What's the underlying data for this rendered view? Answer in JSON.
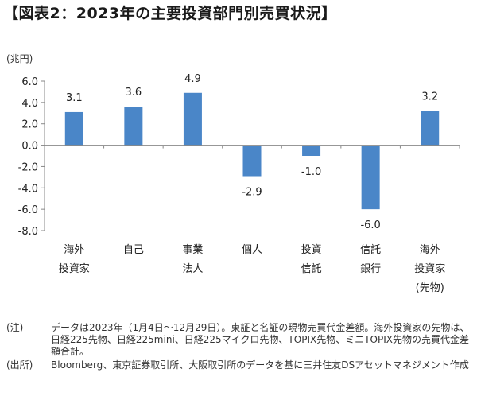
{
  "title": "【図表2：2023年の主要投資部門別売買状況】",
  "chart_data": {
    "type": "bar",
    "unit_label": "(兆円)",
    "categories": [
      [
        "海外",
        "投資家"
      ],
      [
        "自己"
      ],
      [
        "事業",
        "法人"
      ],
      [
        "個人"
      ],
      [
        "投資",
        "信託"
      ],
      [
        "信託",
        "銀行"
      ],
      [
        "海外",
        "投資家",
        "(先物)"
      ]
    ],
    "values": [
      3.1,
      3.6,
      4.9,
      -2.9,
      -1.0,
      -6.0,
      3.2
    ],
    "value_labels": [
      "3.1",
      "3.6",
      "4.9",
      "-2.9",
      "-1.0",
      "-6.0",
      "3.2"
    ],
    "ylim": [
      -8.0,
      6.0
    ],
    "yticks": [
      "6.0",
      "4.0",
      "2.0",
      "0.0",
      "-2.0",
      "-4.0",
      "-6.0",
      "-8.0"
    ],
    "bar_color": "#4a86c8",
    "grid": false,
    "legend": "none"
  },
  "notes": [
    {
      "label": "(注)",
      "text": "データは2023年（1月4日～12月29日）。東証と名証の現物売買代金差額。海外投資家の先物は、日経225先物、日経225mini、日経225マイクロ先物、TOPIX先物、ミニTOPIX先物の売買代金差額合計。"
    },
    {
      "label": "(出所)",
      "text": "Bloomberg、東京証券取引所、大阪取引所のデータを基に三井住友DSアセットマネジメント作成"
    }
  ]
}
